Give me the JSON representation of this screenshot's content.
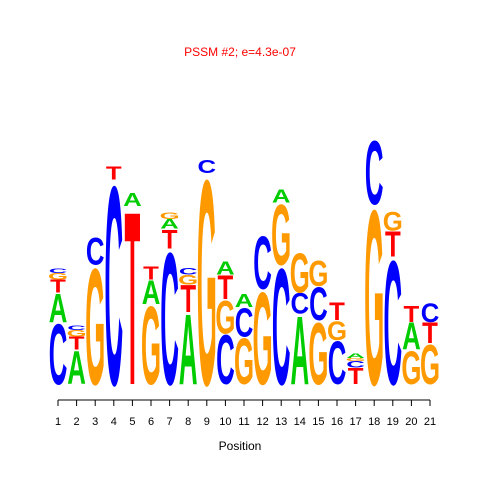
{
  "chart_data": {
    "type": "sequence-logo",
    "title": "PSSM #2; e=4.3e-07",
    "xlabel": "Position",
    "ylim": [
      0,
      2
    ],
    "x": [
      "1",
      "2",
      "3",
      "4",
      "5",
      "6",
      "7",
      "8",
      "9",
      "10",
      "11",
      "12",
      "13",
      "14",
      "15",
      "16",
      "17",
      "18",
      "19",
      "20",
      "21"
    ],
    "columns": [
      [
        {
          "letter": "C",
          "height": 0.38
        },
        {
          "letter": "A",
          "height": 0.18
        },
        {
          "letter": "T",
          "height": 0.08
        },
        {
          "letter": "G",
          "height": 0.04
        },
        {
          "letter": "C",
          "height": 0.03
        }
      ],
      [
        {
          "letter": "A",
          "height": 0.21
        },
        {
          "letter": "T",
          "height": 0.08
        },
        {
          "letter": "G",
          "height": 0.04
        },
        {
          "letter": "C",
          "height": 0.03
        }
      ],
      [
        {
          "letter": "G",
          "height": 0.73
        },
        {
          "letter": "C",
          "height": 0.17
        }
      ],
      [
        {
          "letter": "C",
          "height": 1.25
        },
        {
          "letter": "T",
          "height": 0.08
        }
      ],
      [
        {
          "letter": "T",
          "height": 1.09
        },
        {
          "letter": "A",
          "height": 0.08
        }
      ],
      [
        {
          "letter": "G",
          "height": 0.49
        },
        {
          "letter": "A",
          "height": 0.15
        },
        {
          "letter": "T",
          "height": 0.08
        }
      ],
      [
        {
          "letter": "C",
          "height": 0.83
        },
        {
          "letter": "T",
          "height": 0.12
        },
        {
          "letter": "A",
          "height": 0.06
        },
        {
          "letter": "G",
          "height": 0.04
        }
      ],
      [
        {
          "letter": "A",
          "height": 0.44
        },
        {
          "letter": "T",
          "height": 0.17
        },
        {
          "letter": "G",
          "height": 0.06
        },
        {
          "letter": "C",
          "height": 0.04
        }
      ],
      [
        {
          "letter": "G",
          "height": 1.29
        },
        {
          "letter": "C",
          "height": 0.08
        }
      ],
      [
        {
          "letter": "C",
          "height": 0.31
        },
        {
          "letter": "G",
          "height": 0.21
        },
        {
          "letter": "T",
          "height": 0.15
        },
        {
          "letter": "A",
          "height": 0.08
        }
      ],
      [
        {
          "letter": "G",
          "height": 0.29
        },
        {
          "letter": "C",
          "height": 0.18
        },
        {
          "letter": "A",
          "height": 0.08
        }
      ],
      [
        {
          "letter": "G",
          "height": 0.58
        },
        {
          "letter": "C",
          "height": 0.33
        }
      ],
      [
        {
          "letter": "C",
          "height": 0.73
        },
        {
          "letter": "G",
          "height": 0.38
        },
        {
          "letter": "A",
          "height": 0.08
        }
      ],
      [
        {
          "letter": "A",
          "height": 0.43
        },
        {
          "letter": "C",
          "height": 0.13
        },
        {
          "letter": "G",
          "height": 0.25
        }
      ],
      [
        {
          "letter": "G",
          "height": 0.39
        },
        {
          "letter": "C",
          "height": 0.21
        },
        {
          "letter": "G",
          "height": 0.16
        }
      ],
      [
        {
          "letter": "C",
          "height": 0.27
        },
        {
          "letter": "G",
          "height": 0.12
        },
        {
          "letter": "T",
          "height": 0.11
        }
      ],
      [
        {
          "letter": "T",
          "height": 0.1
        },
        {
          "letter": "C",
          "height": 0.04
        },
        {
          "letter": "G",
          "height": 0.02
        },
        {
          "letter": "A",
          "height": 0.03
        }
      ],
      [
        {
          "letter": "G",
          "height": 1.1
        },
        {
          "letter": "C",
          "height": 0.4
        }
      ],
      [
        {
          "letter": "C",
          "height": 0.78
        },
        {
          "letter": "T",
          "height": 0.16
        },
        {
          "letter": "G",
          "height": 0.12
        }
      ],
      [
        {
          "letter": "G",
          "height": 0.21
        },
        {
          "letter": "A",
          "height": 0.17
        },
        {
          "letter": "T",
          "height": 0.1
        }
      ],
      [
        {
          "letter": "G",
          "height": 0.25
        },
        {
          "letter": "T",
          "height": 0.13
        },
        {
          "letter": "C",
          "height": 0.12
        }
      ]
    ],
    "colors": {
      "A": "#00cc00",
      "C": "#0000ff",
      "G": "#ff9900",
      "T": "#ff0000"
    }
  }
}
